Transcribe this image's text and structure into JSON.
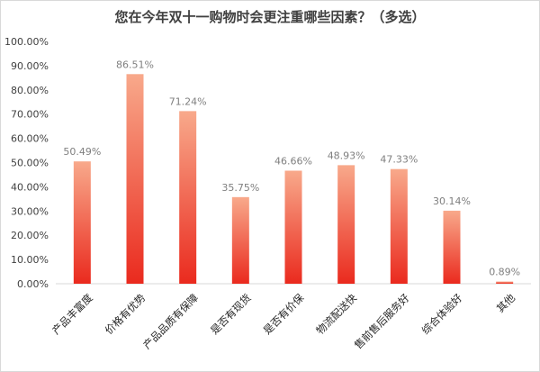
{
  "chart_data": {
    "type": "bar",
    "title": "您在今年双十一购物时会更注重哪些因素？（多选）",
    "categories": [
      "产品丰富度",
      "价格有优势",
      "产品品质有保障",
      "是否有现货",
      "是否有价保",
      "物流配送快",
      "售前售后服务好",
      "综合体验好",
      "其他"
    ],
    "values": [
      50.49,
      86.51,
      71.24,
      35.75,
      46.66,
      48.93,
      47.33,
      30.14,
      0.89
    ],
    "value_labels": [
      "50.49%",
      "86.51%",
      "71.24%",
      "35.75%",
      "46.66%",
      "48.93%",
      "47.33%",
      "30.14%",
      "0.89%"
    ],
    "y_ticks": [
      "0.00%",
      "10.00%",
      "20.00%",
      "30.00%",
      "40.00%",
      "50.00%",
      "60.00%",
      "70.00%",
      "80.00%",
      "90.00%",
      "100.00%"
    ],
    "ylim": [
      0,
      100
    ],
    "xlabel": "",
    "ylabel": "",
    "grid": false,
    "legend": "none",
    "colors": {
      "bar_top": "#f8a98b",
      "bar_bottom": "#ea2a1e",
      "axis": "#d9d9d9"
    }
  }
}
